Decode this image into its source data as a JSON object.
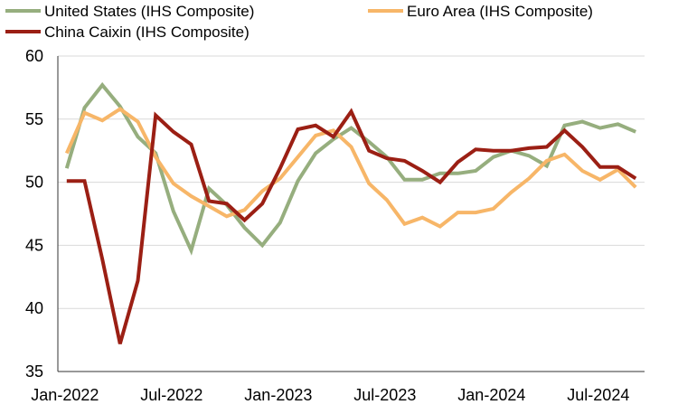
{
  "chart_data": {
    "type": "line",
    "title": "",
    "xlabel": "",
    "ylabel": "",
    "ylim": [
      35,
      60
    ],
    "yticks": [
      35,
      40,
      45,
      50,
      55,
      60
    ],
    "x": [
      "Jan-2022",
      "Feb-2022",
      "Mar-2022",
      "Apr-2022",
      "May-2022",
      "Jun-2022",
      "Jul-2022",
      "Aug-2022",
      "Sep-2022",
      "Oct-2022",
      "Nov-2022",
      "Dec-2022",
      "Jan-2023",
      "Feb-2023",
      "Mar-2023",
      "Apr-2023",
      "May-2023",
      "Jun-2023",
      "Jul-2023",
      "Aug-2023",
      "Sep-2023",
      "Oct-2023",
      "Nov-2023",
      "Dec-2023",
      "Jan-2024",
      "Feb-2024",
      "Mar-2024",
      "Apr-2024",
      "May-2024",
      "Jun-2024",
      "Jul-2024",
      "Aug-2024",
      "Sep-2024"
    ],
    "xtick_labels": [
      {
        "index": 0,
        "label": "Jan-2022"
      },
      {
        "index": 6,
        "label": "Jul-2022"
      },
      {
        "index": 12,
        "label": "Jan-2023"
      },
      {
        "index": 18,
        "label": "Jul-2023"
      },
      {
        "index": 24,
        "label": "Jan-2024"
      },
      {
        "index": 30,
        "label": "Jul-2024"
      }
    ],
    "legend": "top",
    "grid": true,
    "series": [
      {
        "name": "United States (IHS Composite)",
        "color": "#96ae7e",
        "values": [
          51.1,
          55.9,
          57.7,
          56.0,
          53.6,
          52.3,
          47.7,
          44.6,
          49.5,
          48.2,
          46.4,
          45.0,
          46.8,
          50.1,
          52.3,
          53.4,
          54.3,
          53.2,
          52.0,
          50.2,
          50.2,
          50.7,
          50.7,
          50.9,
          52.0,
          52.5,
          52.1,
          51.3,
          54.5,
          54.8,
          54.3,
          54.6,
          54.0
        ]
      },
      {
        "name": "Euro Area (IHS Composite)",
        "color": "#f7b668",
        "values": [
          52.3,
          55.5,
          54.9,
          55.8,
          54.8,
          52.0,
          49.9,
          48.9,
          48.1,
          47.3,
          47.8,
          49.3,
          50.3,
          52.0,
          53.7,
          54.1,
          52.8,
          49.9,
          48.6,
          46.7,
          47.2,
          46.5,
          47.6,
          47.6,
          47.9,
          49.2,
          50.3,
          51.7,
          52.2,
          50.9,
          50.2,
          51.0,
          49.6
        ]
      },
      {
        "name": "China Caixin (IHS Composite)",
        "color": "#9b1f14",
        "values": [
          50.1,
          50.1,
          43.9,
          37.2,
          42.2,
          55.3,
          54.0,
          53.0,
          48.5,
          48.3,
          47.0,
          48.3,
          51.1,
          54.2,
          54.5,
          53.6,
          55.6,
          52.5,
          51.9,
          51.7,
          50.9,
          50.0,
          51.6,
          52.6,
          52.5,
          52.5,
          52.7,
          52.8,
          54.1,
          52.8,
          51.2,
          51.2,
          50.3
        ]
      }
    ]
  }
}
